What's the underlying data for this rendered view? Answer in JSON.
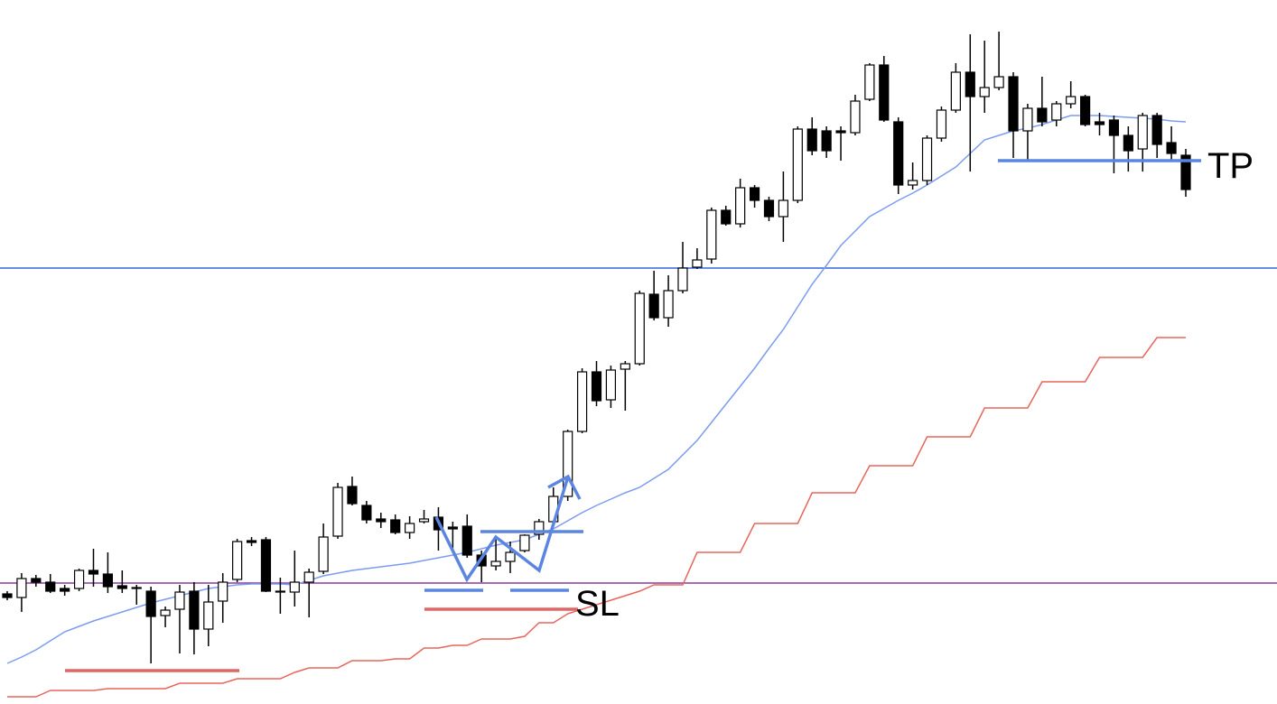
{
  "chart_data": {
    "type": "candlestick",
    "ylim": [
      0,
      780
    ],
    "candle_colors": {
      "up": "#ffffff",
      "down": "#000000",
      "edge": "#000000"
    },
    "open": [
      122,
      118,
      139,
      135,
      128,
      128,
      148,
      144,
      131,
      129,
      125,
      98,
      105,
      125,
      83,
      114,
      138,
      181,
      182,
      125,
      124,
      135,
      147,
      186,
      241,
      220,
      205,
      204,
      190,
      202,
      207,
      196,
      197,
      165,
      153,
      158,
      170,
      188,
      202,
      230,
      302,
      368,
      337,
      371,
      377,
      454,
      428,
      458,
      484,
      493,
      547,
      532,
      572,
      558,
      540,
      558,
      637,
      635,
      635,
      633,
      670,
      708,
      645,
      575,
      580,
      627,
      658,
      700,
      673,
      683,
      695,
      635,
      660,
      647,
      665,
      673,
      645,
      647,
      630,
      615,
      652,
      622,
      608
    ],
    "high": [
      125,
      145,
      143,
      144,
      132,
      150,
      172,
      168,
      148,
      132,
      130,
      108,
      132,
      135,
      132,
      145,
      183,
      185,
      185,
      140,
      170,
      150,
      200,
      245,
      252,
      225,
      212,
      210,
      208,
      215,
      218,
      202,
      210,
      170,
      185,
      180,
      188,
      205,
      240,
      304,
      372,
      380,
      375,
      380,
      458,
      480,
      475,
      512,
      505,
      550,
      552,
      582,
      575,
      562,
      590,
      640,
      650,
      640,
      640,
      675,
      710,
      718,
      650,
      600,
      630,
      662,
      710,
      742,
      735,
      745,
      700,
      665,
      695,
      668,
      690,
      675,
      655,
      652,
      640,
      655,
      655,
      640,
      615
    ],
    "low": [
      115,
      102,
      130,
      123,
      120,
      125,
      130,
      123,
      123,
      110,
      45,
      85,
      56,
      55,
      64,
      90,
      135,
      175,
      124,
      100,
      108,
      96,
      144,
      183,
      220,
      200,
      195,
      188,
      183,
      200,
      170,
      170,
      162,
      135,
      148,
      145,
      168,
      182,
      200,
      225,
      300,
      330,
      328,
      325,
      375,
      425,
      418,
      455,
      482,
      488,
      530,
      528,
      550,
      535,
      512,
      555,
      608,
      605,
      602,
      630,
      668,
      645,
      565,
      570,
      575,
      623,
      655,
      590,
      655,
      680,
      605,
      602,
      640,
      640,
      660,
      640,
      630,
      588,
      590,
      590,
      605,
      602,
      562
    ],
    "close": [
      118,
      139,
      135,
      125,
      125,
      148,
      144,
      130,
      128,
      128,
      97,
      104,
      124,
      83,
      113,
      135,
      180,
      179,
      125,
      124,
      135,
      146,
      185,
      240,
      222,
      204,
      202,
      190,
      200,
      205,
      193,
      194,
      165,
      153,
      158,
      168,
      187,
      202,
      230,
      302,
      368,
      336,
      370,
      377,
      455,
      428,
      458,
      483,
      492,
      547,
      532,
      572,
      558,
      540,
      558,
      637,
      613,
      613,
      633,
      668,
      708,
      647,
      575,
      580,
      627,
      658,
      700,
      673,
      683,
      695,
      635,
      660,
      645,
      665,
      673,
      642,
      642,
      630,
      613,
      652,
      620,
      610,
      570
    ],
    "overlays": [
      {
        "type": "line",
        "color": "#7b9cf0",
        "values": [
          45,
          52,
          60,
          70,
          80,
          86,
          92,
          97,
          102,
          107,
          112,
          116,
          120,
          124,
          128,
          130,
          132,
          133,
          133,
          133,
          132,
          137,
          142,
          145,
          148,
          150,
          152,
          154,
          156,
          159,
          162,
          165,
          168,
          172,
          176,
          179,
          182,
          188,
          194,
          203,
          212,
          220,
          227,
          234,
          240,
          250,
          260,
          276,
          292,
          312,
          332,
          352,
          372,
          394,
          415,
          440,
          465,
          486,
          508,
          524,
          540,
          549,
          558,
          566,
          575,
          585,
          595,
          610,
          625,
          630,
          635,
          638,
          642,
          647,
          652,
          652,
          652,
          651,
          650,
          649,
          648,
          646,
          645
        ]
      },
      {
        "type": "line",
        "color": "#e8655c",
        "values": [
          8,
          8,
          8,
          15,
          15,
          15,
          15,
          17,
          17,
          17,
          17,
          17,
          23,
          23,
          23,
          23,
          28,
          28,
          28,
          28,
          35,
          40,
          40,
          40,
          48,
          48,
          48,
          50,
          50,
          62,
          62,
          65,
          65,
          72,
          72,
          72,
          75,
          90,
          90,
          100,
          105,
          110,
          115,
          120,
          125,
          132,
          132,
          132,
          168,
          168,
          168,
          168,
          200,
          200,
          200,
          200,
          234,
          234,
          234,
          234,
          264,
          264,
          264,
          264,
          296,
          296,
          296,
          296,
          328,
          328,
          328,
          328,
          357,
          357,
          357,
          357,
          384,
          384,
          384,
          384,
          406,
          406,
          406
        ]
      }
    ],
    "annotations": {
      "take_profit": "TP",
      "stop_loss": "SL"
    }
  }
}
